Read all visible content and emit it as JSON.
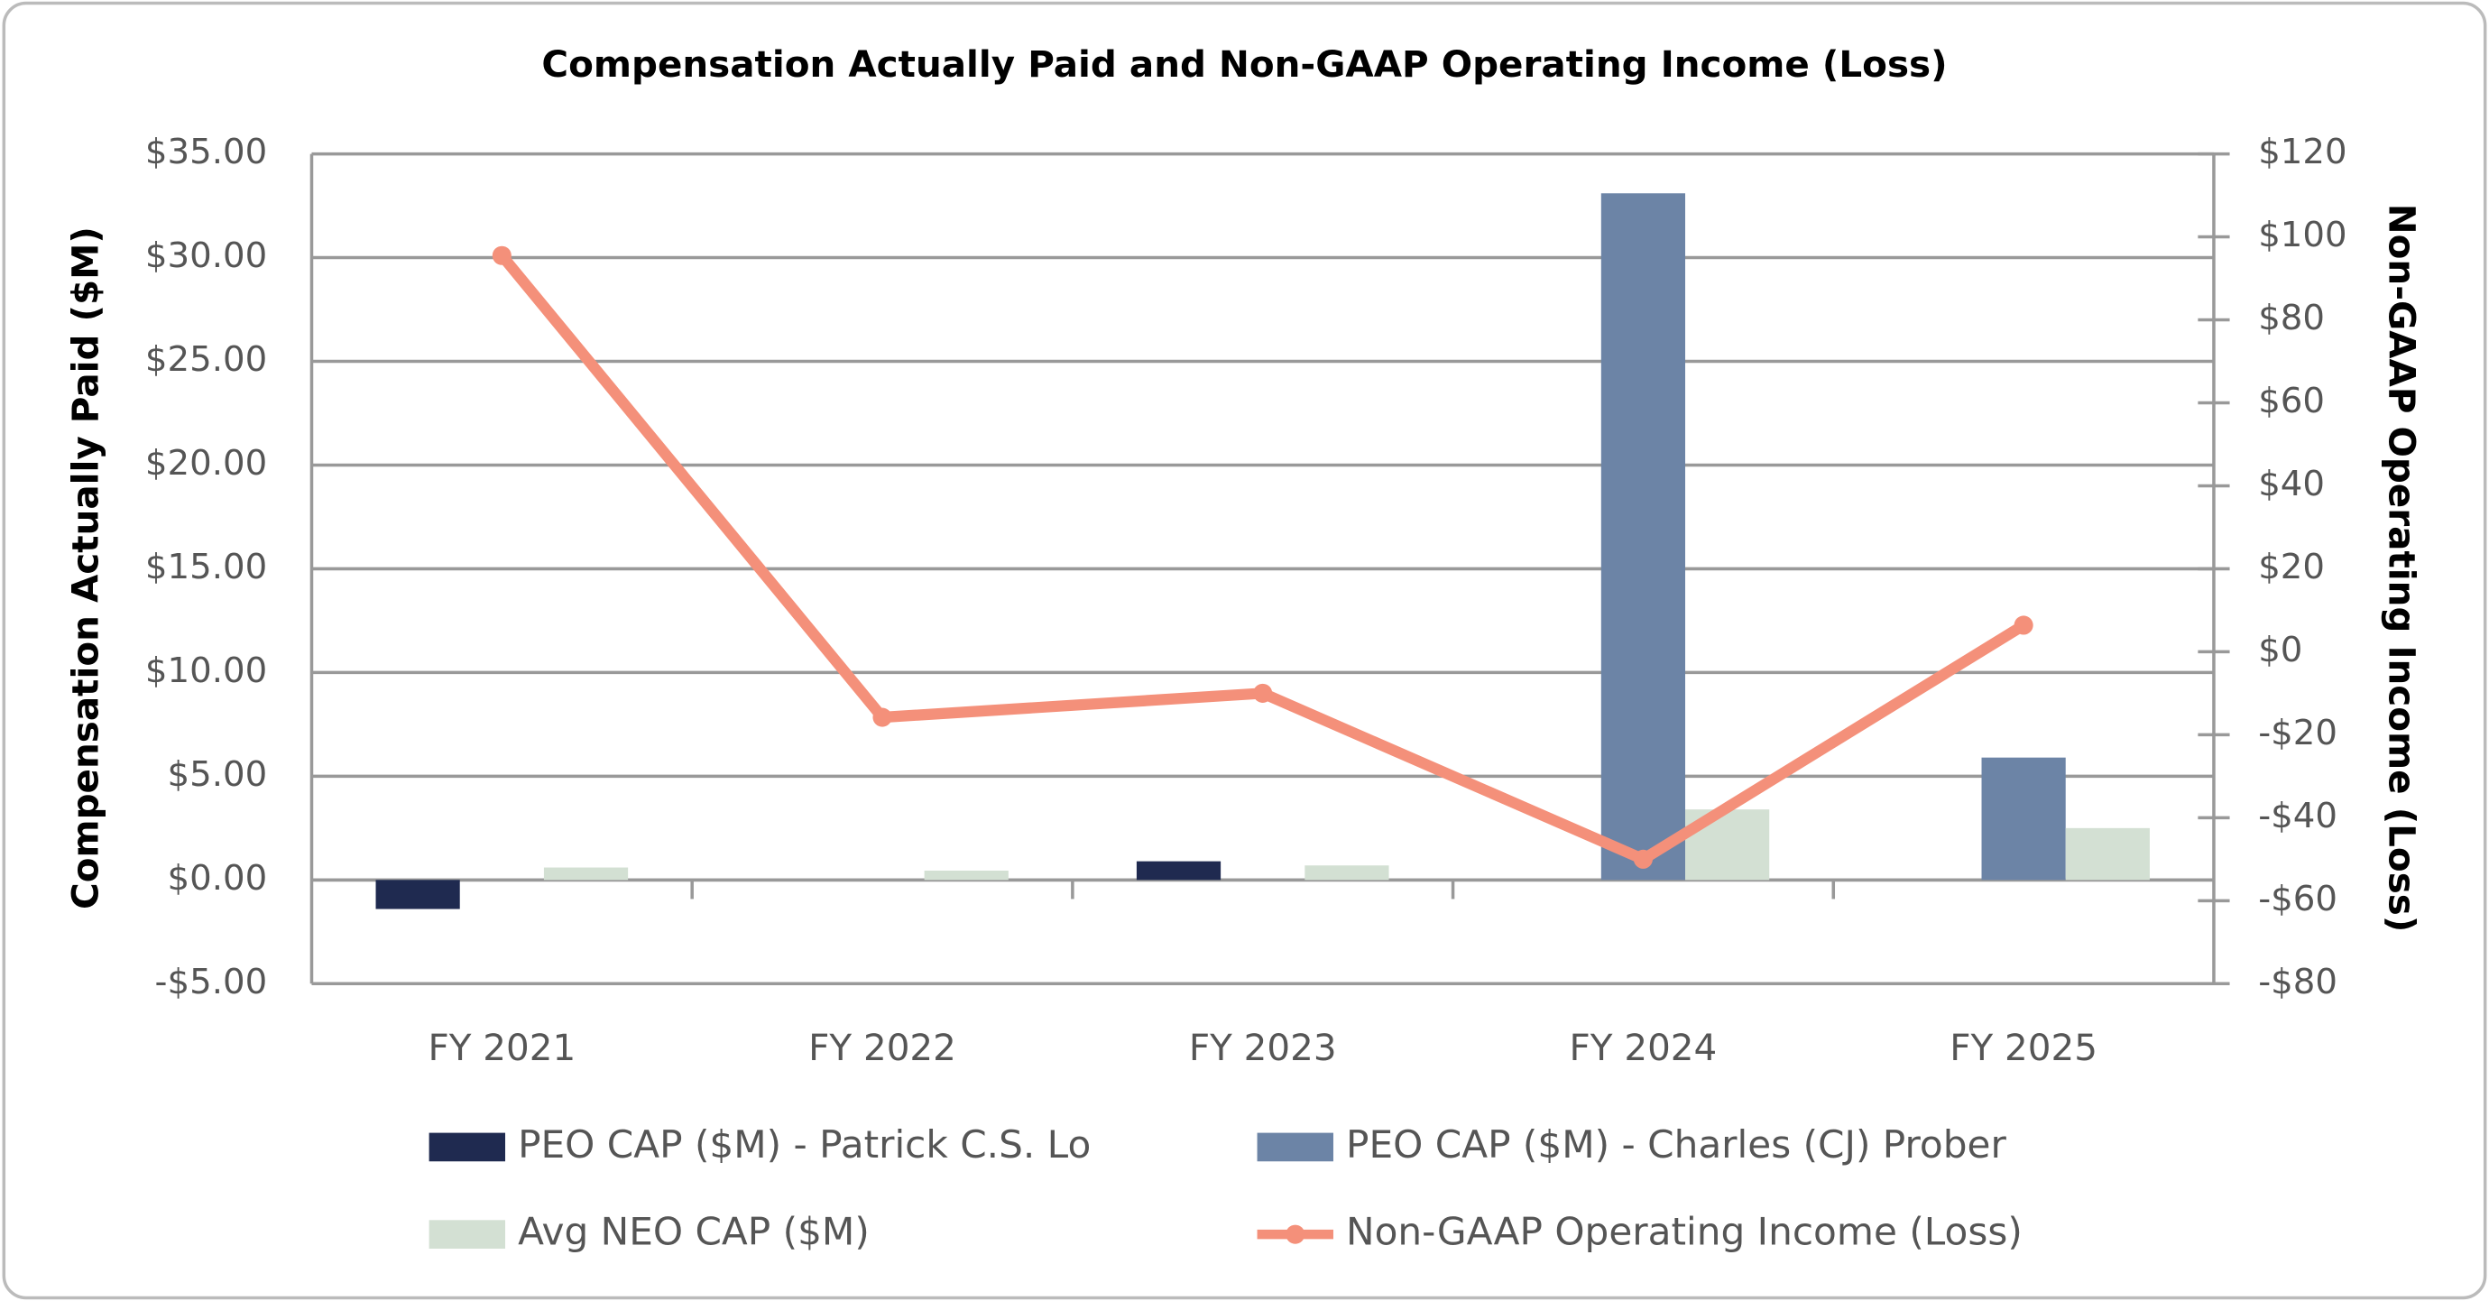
{
  "chart_data": {
    "type": "bar-line",
    "title": "Compensation Actually Paid and Non-GAAP Operating Income (Loss)",
    "y_label": "Compensation Actually Paid ($M)",
    "y2_label": "Non-GAAP Operating Income (Loss)",
    "categories": [
      "FY 2021",
      "FY 2022",
      "FY 2023",
      "FY 2024",
      "FY 2025"
    ],
    "series": [
      {
        "name": "PEO CAP ($M) - Patrick C.S. Lo",
        "type": "bar",
        "color": "#1f2a50",
        "values": [
          -1.4,
          null,
          0.9,
          null,
          null
        ]
      },
      {
        "name": "PEO CAP ($M) - Charles (CJ) Prober",
        "type": "bar",
        "color": "#6c84a6",
        "values": [
          null,
          null,
          null,
          33.1,
          5.9
        ]
      },
      {
        "name": "Avg NEO CAP ($M)",
        "type": "bar",
        "color": "#d3e0d3",
        "values": [
          0.6,
          0.45,
          0.7,
          3.4,
          2.5
        ]
      },
      {
        "name": "Non-GAAP Operating Income (Loss)",
        "type": "line",
        "axis": "y2",
        "color": "#f4907a",
        "values": [
          95.5,
          -15.8,
          -10,
          -50,
          6.4
        ]
      }
    ],
    "ylim": [
      -5,
      35
    ],
    "yticks": [
      {
        "value": -5,
        "label": "-$5.00"
      },
      {
        "value": 0,
        "label": "$0.00"
      },
      {
        "value": 5,
        "label": "$5.00"
      },
      {
        "value": 10,
        "label": "$10.00"
      },
      {
        "value": 15,
        "label": "$15.00"
      },
      {
        "value": 20,
        "label": "$20.00"
      },
      {
        "value": 25,
        "label": "$25.00"
      },
      {
        "value": 30,
        "label": "$30.00"
      },
      {
        "value": 35,
        "label": "$35.00"
      }
    ],
    "y2lim": [
      -80,
      120
    ],
    "y2ticks": [
      {
        "value": -80,
        "label": "-$80"
      },
      {
        "value": -60,
        "label": "-$60"
      },
      {
        "value": -40,
        "label": "-$40"
      },
      {
        "value": -20,
        "label": "-$20"
      },
      {
        "value": 0,
        "label": "$0"
      },
      {
        "value": 20,
        "label": "$20"
      },
      {
        "value": 40,
        "label": "$40"
      },
      {
        "value": 60,
        "label": "$60"
      },
      {
        "value": 80,
        "label": "$80"
      },
      {
        "value": 100,
        "label": "$100"
      },
      {
        "value": 120,
        "label": "$120"
      }
    ],
    "grid": true
  }
}
